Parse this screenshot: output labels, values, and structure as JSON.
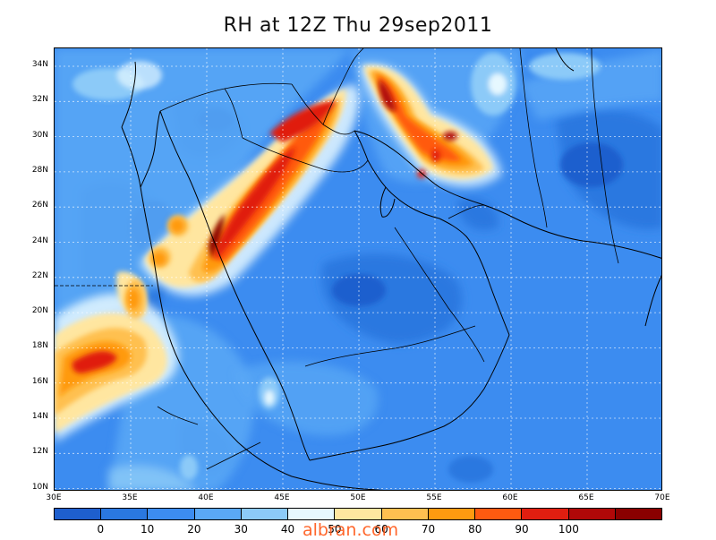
{
  "title": "RH at 12Z Thu 29sep2011",
  "watermark": "albran.com",
  "lat_labels": [
    "34N",
    "32N",
    "30N",
    "28N",
    "26N",
    "24N",
    "22N",
    "20N",
    "18N",
    "16N",
    "14N",
    "12N",
    "10N"
  ],
  "lon_labels": [
    "30E",
    "35E",
    "40E",
    "45E",
    "50E",
    "55E",
    "60E",
    "65E",
    "70E"
  ],
  "colorbar": {
    "colors": [
      "#1e5fce",
      "#2a78e0",
      "#3c8cf0",
      "#5aa8f6",
      "#8ccaf8",
      "#e6f8ff",
      "#ffe6a0",
      "#ffc050",
      "#ff9a10",
      "#ff5a10",
      "#e01e10",
      "#b00808",
      "#8a0000"
    ],
    "labels": [
      "0",
      "10",
      "20",
      "30",
      "40",
      "50",
      "60",
      "70",
      "80",
      "90",
      "100"
    ]
  },
  "map": {
    "lon_range": [
      30,
      70
    ],
    "lat_range": [
      10,
      35
    ],
    "grid": true,
    "variable": "Relative humidity (%)"
  }
}
